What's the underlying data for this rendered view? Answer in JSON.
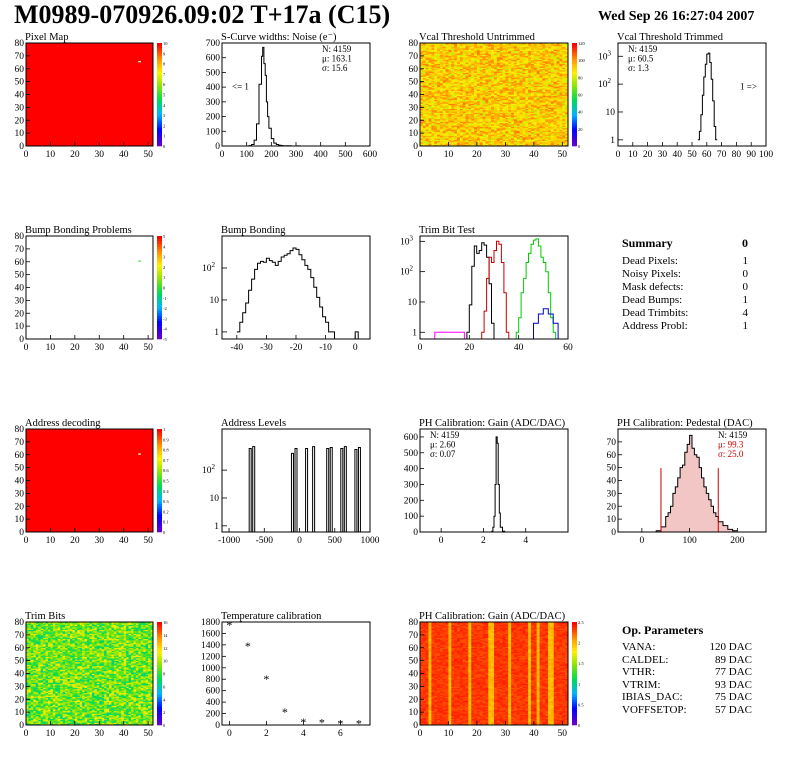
{
  "header": {
    "title": "M0989-070926.09:02 T+17a (C15)",
    "date": "Wed Sep 26 16:27:04 2007"
  },
  "chart_data": [
    {
      "id": "pixel-map",
      "type": "heatmap",
      "title": "Pixel Map",
      "colormap": "solid-red",
      "xlim": [
        0,
        52
      ],
      "ylim": [
        0,
        80
      ],
      "xticks": [
        0,
        10,
        20,
        30,
        40,
        50
      ],
      "yticks": [
        0,
        10,
        20,
        30,
        40,
        50,
        60,
        70,
        80
      ],
      "zticks": [
        0,
        1,
        2,
        3,
        4,
        5,
        6,
        7,
        8,
        9,
        10
      ],
      "fill_color": "#ff0000",
      "hot_pixels": [
        [
          46,
          65
        ]
      ]
    },
    {
      "id": "scurve-noise",
      "type": "line",
      "title": "S-Curve widths: Noise (e⁻)",
      "xlim": [
        0,
        600
      ],
      "ylim": [
        0,
        700
      ],
      "xticks": [
        0,
        100,
        200,
        300,
        400,
        500,
        600
      ],
      "yticks": [
        0,
        100,
        200,
        300,
        400,
        500,
        600,
        700
      ],
      "stats": [
        "N: 4159",
        "μ: 163.1",
        "σ: 15.6"
      ],
      "annotation": "<= 1",
      "x": [
        100,
        110,
        120,
        130,
        140,
        150,
        160,
        165,
        170,
        175,
        180,
        185,
        190,
        200,
        210,
        220,
        230,
        240,
        250,
        260,
        280,
        300
      ],
      "values": [
        0,
        3,
        10,
        40,
        150,
        420,
        610,
        670,
        560,
        480,
        300,
        200,
        120,
        50,
        20,
        10,
        5,
        3,
        1,
        2,
        0,
        1
      ]
    },
    {
      "id": "vcal-untrimmed",
      "type": "heatmap",
      "title": "Vcal Threshold Untrimmed",
      "colormap": "root-rainbow",
      "xlim": [
        0,
        52
      ],
      "ylim": [
        0,
        80
      ],
      "xticks": [
        0,
        10,
        20,
        30,
        40,
        50
      ],
      "yticks": [
        0,
        10,
        20,
        30,
        40,
        50,
        60,
        70,
        80
      ],
      "zticks": [
        0,
        20,
        40,
        60,
        80,
        100,
        120
      ],
      "zmax": 130,
      "zmean": 100,
      "zspread": 9
    },
    {
      "id": "vcal-trimmed",
      "type": "line",
      "log_y": true,
      "title": "Vcal Threshold Trimmed",
      "xlim": [
        0,
        100
      ],
      "ylim": [
        0.6,
        3000
      ],
      "xticks": [
        0,
        10,
        20,
        30,
        40,
        50,
        60,
        70,
        80,
        90,
        100
      ],
      "yticks": [
        1,
        10,
        100,
        1000
      ],
      "stats": [
        "N: 4159",
        "μ: 60.5",
        "σ:  1.3"
      ],
      "annotation": "1 =>",
      "x": [
        54,
        55,
        56,
        57,
        58,
        59,
        60,
        61,
        62,
        63,
        64,
        65,
        66
      ],
      "values": [
        1,
        2,
        8,
        40,
        180,
        520,
        1200,
        1300,
        600,
        150,
        25,
        3,
        1
      ]
    },
    {
      "id": "bump-problems",
      "type": "heatmap",
      "title": "Bump Bonding Problems",
      "colormap": "empty",
      "xlim": [
        0,
        52
      ],
      "ylim": [
        0,
        80
      ],
      "xticks": [
        0,
        10,
        20,
        30,
        40,
        50
      ],
      "yticks": [
        0,
        10,
        20,
        30,
        40,
        50,
        60,
        70,
        80
      ],
      "zticks": [
        -5,
        -4,
        -3,
        -2,
        -1,
        0,
        1,
        2,
        3,
        4,
        5
      ],
      "hot_pixels": [
        [
          46,
          60
        ]
      ],
      "hot_color": "#4cd44c"
    },
    {
      "id": "bump-bonding",
      "type": "line",
      "log_y": true,
      "title": "Bump Bonding",
      "xlim": [
        -45,
        5
      ],
      "ylim": [
        0.6,
        1000
      ],
      "xticks": [
        -40,
        -30,
        -20,
        -10,
        0
      ],
      "yticks": [
        1,
        10,
        100
      ],
      "x": [
        -40,
        -39,
        -38,
        -37,
        -36,
        -35,
        -34,
        -33,
        -32,
        -31,
        -30,
        -29,
        -28,
        -27,
        -26,
        -25,
        -24,
        -23,
        -22,
        -21,
        -20,
        -19,
        -18,
        -17,
        -16,
        -15,
        -14,
        -13,
        -12,
        -11,
        -10,
        -9,
        -8,
        -7,
        -6,
        -5,
        -4,
        -3,
        -2,
        -1,
        0,
        1
      ],
      "values": [
        1,
        2,
        4,
        8,
        20,
        45,
        90,
        140,
        160,
        150,
        200,
        170,
        150,
        120,
        160,
        220,
        250,
        280,
        350,
        420,
        380,
        260,
        180,
        120,
        90,
        50,
        25,
        12,
        6,
        3,
        2,
        1,
        1,
        0,
        0,
        0,
        0,
        0,
        0,
        0,
        1,
        0
      ]
    },
    {
      "id": "trim-bit-test",
      "type": "line",
      "log_y": true,
      "title": "Trim Bit Test",
      "xlim": [
        0,
        60
      ],
      "ylim": [
        0.6,
        1500
      ],
      "xticks": [
        0,
        20,
        40,
        60
      ],
      "yticks": [
        1,
        10,
        100,
        1000
      ],
      "series": [
        {
          "color": "#000000",
          "x": [
            18,
            19,
            20,
            21,
            22,
            23,
            24,
            25,
            26,
            27,
            28,
            29,
            30
          ],
          "values": [
            0,
            1,
            8,
            150,
            700,
            400,
            500,
            900,
            750,
            300,
            40,
            2,
            0
          ]
        },
        {
          "color": "#cc0000",
          "x": [
            24,
            25,
            26,
            27,
            28,
            29,
            30,
            31,
            32,
            33,
            34,
            35,
            36
          ],
          "values": [
            0,
            1,
            5,
            60,
            300,
            200,
            500,
            1000,
            800,
            200,
            20,
            1,
            0
          ]
        },
        {
          "color": "#00cc00",
          "x": [
            38,
            39,
            40,
            41,
            42,
            43,
            44,
            45,
            46,
            47,
            48,
            49,
            50,
            51,
            52,
            53,
            54,
            55
          ],
          "values": [
            0,
            1,
            3,
            20,
            60,
            200,
            400,
            800,
            1100,
            1200,
            700,
            300,
            200,
            100,
            20,
            3,
            1,
            0
          ]
        },
        {
          "color": "#0000cc",
          "x": [
            44,
            46,
            48,
            50,
            52,
            54,
            56
          ],
          "values": [
            0,
            2,
            4,
            6,
            4,
            2,
            0
          ]
        },
        {
          "color": "#ff00ff",
          "x": [
            2,
            6,
            10,
            14,
            18
          ],
          "values": [
            0,
            1,
            1,
            1,
            0
          ]
        }
      ]
    },
    {
      "id": "address-decoding",
      "type": "heatmap",
      "title": "Address decoding",
      "colormap": "solid-red",
      "xlim": [
        0,
        52
      ],
      "ylim": [
        0,
        80
      ],
      "xticks": [
        0,
        10,
        20,
        30,
        40,
        50
      ],
      "yticks": [
        0,
        10,
        20,
        30,
        40,
        50,
        60,
        70,
        80
      ],
      "zticks": [
        0,
        0.1,
        0.2,
        0.3,
        0.4,
        0.5,
        0.6,
        0.7,
        0.8,
        0.9,
        1
      ],
      "fill_color": "#ff0000",
      "hot_pixels": [
        [
          46,
          60
        ]
      ]
    },
    {
      "id": "address-levels",
      "type": "line",
      "log_y": true,
      "title": "Address Levels",
      "xlim": [
        -1100,
        1000
      ],
      "ylim": [
        0.6,
        3000
      ],
      "xticks": [
        -1000,
        -500,
        0,
        500,
        1000
      ],
      "yticks": [
        1,
        10,
        100
      ],
      "peaks": [
        -700,
        -650,
        -100,
        -50,
        100,
        200,
        400,
        450,
        600,
        650,
        800,
        850
      ],
      "peak_heights": [
        600,
        700,
        400,
        600,
        600,
        700,
        600,
        650,
        600,
        700,
        550,
        650
      ]
    },
    {
      "id": "ph-gain",
      "type": "line",
      "title": "PH Calibration: Gain (ADC/DAC)",
      "xlim": [
        -1,
        6
      ],
      "ylim": [
        0,
        650
      ],
      "xticks": [
        0,
        2,
        4
      ],
      "yticks": [
        0,
        100,
        200,
        300,
        400,
        500,
        600
      ],
      "stats": [
        "N: 4159",
        "μ: 2.60",
        "σ: 0.07"
      ],
      "x": [
        2.3,
        2.4,
        2.45,
        2.5,
        2.55,
        2.6,
        2.65,
        2.7,
        2.75,
        2.8,
        2.9,
        3.0
      ],
      "values": [
        0,
        5,
        30,
        100,
        300,
        600,
        560,
        300,
        120,
        30,
        5,
        0
      ]
    },
    {
      "id": "ph-pedestal",
      "type": "line",
      "title": "PH Calibration: Pedestal (DAC)",
      "xlim": [
        -50,
        260
      ],
      "ylim": [
        0,
        80
      ],
      "xticks": [
        0,
        100,
        200
      ],
      "yticks": [
        0,
        10,
        20,
        30,
        40,
        50,
        60,
        70
      ],
      "stats": [
        "N: 4159",
        "μ: 99.3",
        "σ: 25.0"
      ],
      "stat_colors": [
        "#000000",
        "#cc0000",
        "#cc0000"
      ],
      "markers": [
        40,
        160
      ],
      "marker_color": "#cc0000",
      "x": [
        20,
        30,
        40,
        50,
        55,
        60,
        65,
        70,
        75,
        80,
        85,
        90,
        95,
        100,
        105,
        110,
        115,
        120,
        125,
        130,
        135,
        140,
        145,
        150,
        155,
        160,
        170,
        180,
        190
      ],
      "values": [
        0,
        1,
        4,
        12,
        15,
        20,
        30,
        35,
        42,
        50,
        52,
        62,
        68,
        75,
        65,
        60,
        58,
        50,
        42,
        35,
        30,
        25,
        20,
        15,
        12,
        8,
        5,
        2,
        1
      ]
    },
    {
      "id": "trim-bits",
      "type": "heatmap",
      "title": "Trim Bits",
      "colormap": "root-rainbow",
      "xlim": [
        0,
        52
      ],
      "ylim": [
        0,
        80
      ],
      "xticks": [
        0,
        10,
        20,
        30,
        40,
        50
      ],
      "yticks": [
        0,
        10,
        20,
        30,
        40,
        50,
        60,
        70,
        80
      ],
      "zticks": [
        0,
        2,
        4,
        6,
        8,
        10,
        12,
        14,
        16
      ],
      "zmax": 16,
      "zmean": 9,
      "zspread": 1.6
    },
    {
      "id": "temperature-calibration",
      "type": "scatter",
      "title": "Temperature calibration",
      "xlim": [
        -0.4,
        7.6
      ],
      "ylim": [
        0,
        1800
      ],
      "xticks": [
        0,
        2,
        4,
        6
      ],
      "yticks": [
        0,
        200,
        400,
        600,
        800,
        1000,
        1200,
        1400,
        1600,
        1800
      ],
      "x": [
        0,
        1,
        2,
        3,
        4,
        5,
        6,
        7
      ],
      "values": [
        1750,
        1380,
        800,
        230,
        50,
        40,
        30,
        30
      ]
    },
    {
      "id": "ph-gain-map",
      "type": "heatmap",
      "title": "PH Calibration: Gain (ADC/DAC)",
      "colormap": "root-rainbow",
      "xlim": [
        0,
        52
      ],
      "ylim": [
        0,
        80
      ],
      "xticks": [
        0,
        10,
        20,
        30,
        40,
        50
      ],
      "yticks": [
        0,
        10,
        20,
        30,
        40,
        50,
        60,
        70,
        80
      ],
      "zticks": [
        0,
        0.5,
        1,
        1.5,
        2,
        2.5
      ],
      "zmax": 2.7,
      "zmean": 2.55,
      "zspread": 0.05
    }
  ],
  "summary": {
    "title": "Summary",
    "total": "0",
    "rows": [
      {
        "label": "Dead Pixels:",
        "value": "1"
      },
      {
        "label": "Noisy Pixels:",
        "value": "0"
      },
      {
        "label": "Mask defects:",
        "value": "0"
      },
      {
        "label": "Dead Bumps:",
        "value": "1"
      },
      {
        "label": "Dead Trimbits:",
        "value": "4"
      },
      {
        "label": "Address Probl:",
        "value": "1"
      }
    ]
  },
  "op_parameters": {
    "title": "Op. Parameters",
    "rows": [
      {
        "label": "VANA:",
        "value": "120 DAC"
      },
      {
        "label": "CALDEL:",
        "value": "89 DAC"
      },
      {
        "label": "VTHR:",
        "value": "77 DAC"
      },
      {
        "label": "VTRIM:",
        "value": "93 DAC"
      },
      {
        "label": "IBIAS_DAC:",
        "value": "75 DAC"
      },
      {
        "label": "VOFFSETOP:",
        "value": "57 DAC"
      }
    ]
  }
}
